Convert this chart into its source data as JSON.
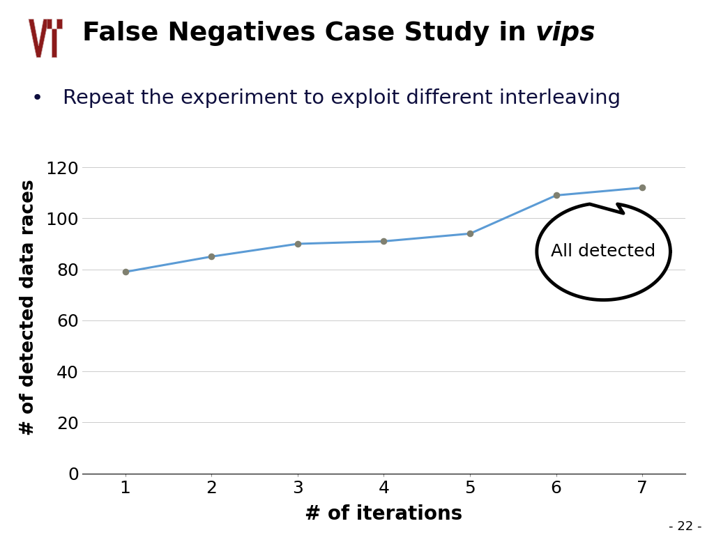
{
  "x": [
    1,
    2,
    3,
    4,
    5,
    6,
    7
  ],
  "y": [
    79,
    85,
    90,
    91,
    94,
    109,
    112
  ],
  "line_color": "#5B9BD5",
  "marker_color": "#808070",
  "xlabel": "# of iterations",
  "ylabel": "# of detected data races",
  "xlim": [
    0.5,
    7.5
  ],
  "ylim": [
    0,
    130
  ],
  "yticks": [
    0,
    20,
    40,
    60,
    80,
    100,
    120
  ],
  "xticks": [
    1,
    2,
    3,
    4,
    5,
    6,
    7
  ],
  "grid_color": "#CCCCCC",
  "background_color": "#FFFFFF",
  "title_normal": "False Negatives Case Study in ",
  "title_italic": "vips",
  "bullet_text": "Repeat the experiment to exploit different interleaving",
  "annotation_text": "All detected",
  "page_number": "- 22 -",
  "header_line_color": "#0000CC",
  "vt_color": "#8B1A1A",
  "bullet_color": "#0D0D3D",
  "axis_label_color": "#000000"
}
